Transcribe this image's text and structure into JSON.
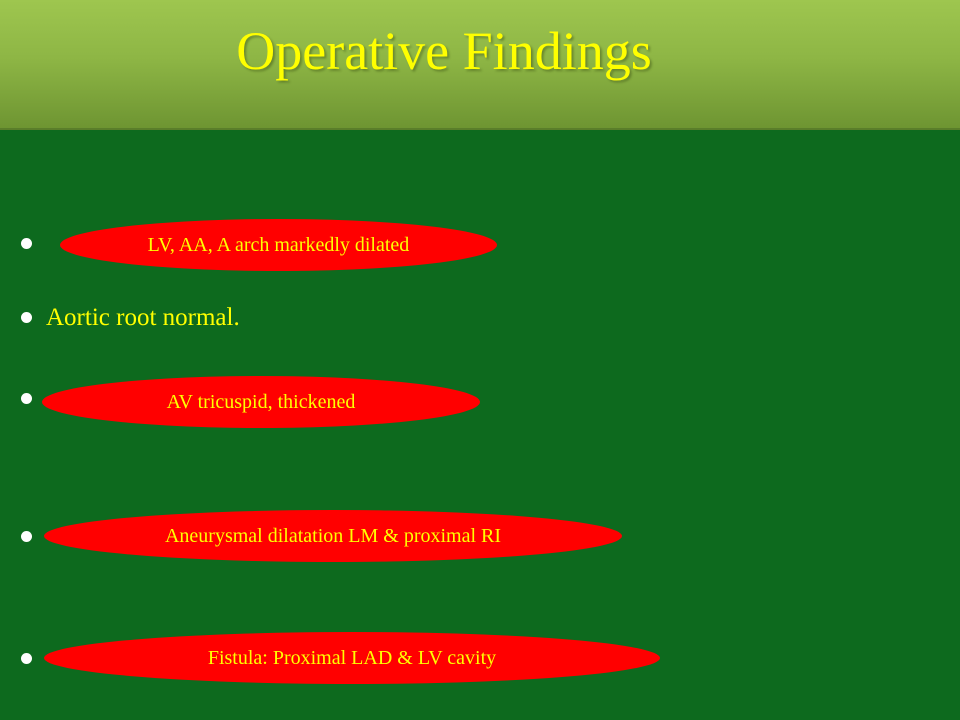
{
  "slide": {
    "title": "Operative Findings",
    "bullets": [
      {
        "text": "LV, AA, A arch markedly dilated",
        "highlight": true
      },
      {
        "text": "Aortic root normal.",
        "highlight": false
      },
      {
        "text": "AV tricuspid,  thickened",
        "highlight": true
      },
      {
        "text": "Aneurysmal dilatation LM & proximal RI",
        "highlight": true
      },
      {
        "text": "Fistula: Proximal  LAD & LV cavity",
        "highlight": true
      }
    ]
  },
  "colors": {
    "background": "#0d6a1e",
    "title_bar": "#8eb645",
    "title_text": "#ffff00",
    "highlight_oval": "#ff0000",
    "text": "#ffff00",
    "bullet": "#ffffff"
  }
}
